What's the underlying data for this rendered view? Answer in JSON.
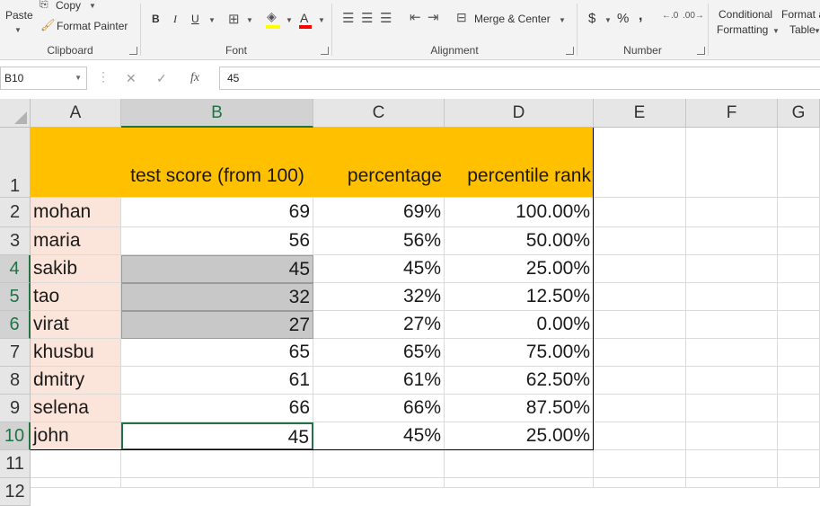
{
  "ribbon": {
    "clipboard": {
      "paste": "Paste",
      "copy": "Copy",
      "format_painter": "Format Painter",
      "label": "Clipboard"
    },
    "font": {
      "bold": "B",
      "italic": "I",
      "underline": "U",
      "font_color_glyph": "A",
      "label": "Font"
    },
    "alignment": {
      "merge_center": "Merge & Center",
      "label": "Alignment"
    },
    "number": {
      "currency": "$",
      "percent": "%",
      "comma": ",",
      "label": "Number"
    },
    "styles": {
      "conditional_formatting_line1": "Conditional",
      "conditional_formatting_line2": "Formatting",
      "format_as_table_line1": "Format a",
      "format_as_table_line2": "Table"
    },
    "colors": {
      "font_color_bar": "#ff0000",
      "fill_color_bar": "#ffff00"
    }
  },
  "formula_bar": {
    "name_box": "B10",
    "formula": "45",
    "fx_icon": "fx"
  },
  "grid": {
    "columns": [
      "A",
      "B",
      "C",
      "D",
      "E",
      "F",
      "G"
    ],
    "selected_column": "B",
    "rows": [
      "1",
      "2",
      "3",
      "4",
      "5",
      "6",
      "7",
      "8",
      "9",
      "10",
      "11",
      "12"
    ],
    "selected_rows": [
      "4",
      "5",
      "6",
      "10"
    ],
    "header": {
      "B": "test score (from 100)",
      "C": "percentage",
      "D": "percentile rank"
    },
    "data": [
      {
        "name": "mohan",
        "score": "69",
        "percentage": "69%",
        "rank": "100.00%"
      },
      {
        "name": "maria",
        "score": "56",
        "percentage": "56%",
        "rank": "50.00%"
      },
      {
        "name": "sakib",
        "score": "45",
        "percentage": "45%",
        "rank": "25.00%"
      },
      {
        "name": "tao",
        "score": "32",
        "percentage": "32%",
        "rank": "12.50%"
      },
      {
        "name": "virat",
        "score": "27",
        "percentage": "27%",
        "rank": "0.00%"
      },
      {
        "name": "khusbu",
        "score": "65",
        "percentage": "65%",
        "rank": "75.00%"
      },
      {
        "name": "dmitry",
        "score": "61",
        "percentage": "61%",
        "rank": "62.50%"
      },
      {
        "name": "selena",
        "score": "66",
        "percentage": "66%",
        "rank": "87.50%"
      },
      {
        "name": "john",
        "score": "45",
        "percentage": "45%",
        "rank": "25.00%"
      }
    ],
    "colors": {
      "header_fill": "#ffc000",
      "name_fill": "#fbe4d9",
      "selection_fill": "#c8c8c8",
      "active_border": "#217346"
    }
  }
}
